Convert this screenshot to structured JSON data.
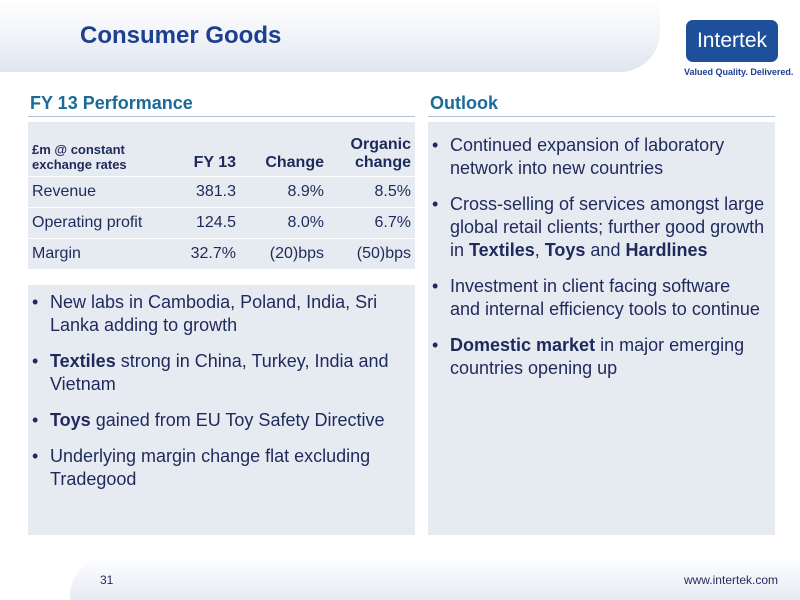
{
  "header": {
    "title": "Consumer Goods",
    "logo": "Intertek",
    "tagline": "Valued Quality. Delivered."
  },
  "performance": {
    "heading": "FY 13 Performance",
    "table": {
      "header": [
        "£m @ constant exchange rates",
        "FY 13",
        "Change",
        "Organic change"
      ],
      "rows": [
        [
          "Revenue",
          "381.3",
          "8.9%",
          "8.5%"
        ],
        [
          "Operating profit",
          "124.5",
          "8.0%",
          "6.7%"
        ],
        [
          "Margin",
          "32.7%",
          "(20)bps",
          "(50)bps"
        ]
      ]
    },
    "bullets": [
      [
        {
          "text": "New labs in Cambodia, Poland, India, Sri Lanka adding to growth"
        }
      ],
      [
        {
          "text": "Textiles",
          "bold": true
        },
        {
          "text": " strong in China, Turkey, India and Vietnam"
        }
      ],
      [
        {
          "text": "Toys",
          "bold": true
        },
        {
          "text": " gained from EU Toy Safety Directive"
        }
      ],
      [
        {
          "text": "Underlying margin change flat excluding Tradegood"
        }
      ]
    ]
  },
  "outlook": {
    "heading": "Outlook",
    "bullets": [
      [
        {
          "text": "Continued expansion of laboratory network into new countries"
        }
      ],
      [
        {
          "text": "Cross-selling of services amongst large global retail clients; further good growth in "
        },
        {
          "text": "Textiles",
          "bold": true
        },
        {
          "text": ", "
        },
        {
          "text": "Toys",
          "bold": true
        },
        {
          "text": " and "
        },
        {
          "text": "Hardlines",
          "bold": true
        }
      ],
      [
        {
          "text": "Investment in client facing software and internal efficiency tools to continue"
        }
      ],
      [
        {
          "text": "Domestic market",
          "bold": true
        },
        {
          "text": " in major emerging countries opening up"
        }
      ]
    ]
  },
  "footer": {
    "page": "31",
    "url": "www.intertek.com"
  }
}
